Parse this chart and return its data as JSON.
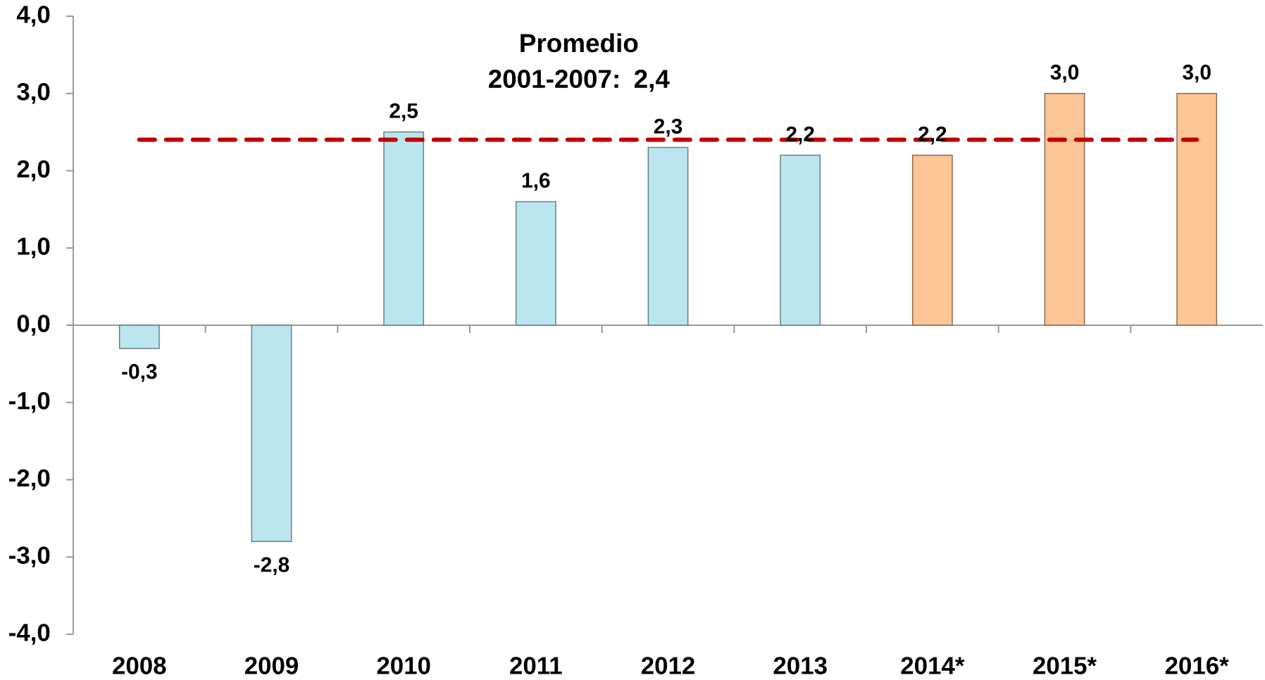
{
  "chart_data": {
    "type": "bar",
    "categories": [
      "2008",
      "2009",
      "2010",
      "2011",
      "2012",
      "2013",
      "2014*",
      "2015*",
      "2016*"
    ],
    "values": [
      -0.3,
      -2.8,
      2.5,
      1.6,
      2.3,
      2.2,
      2.2,
      3.0,
      3.0
    ],
    "colors": [
      "#bce6ef",
      "#bce6ef",
      "#bce6ef",
      "#bce6ef",
      "#bce6ef",
      "#bce6ef",
      "#fcc595",
      "#fcc595",
      "#fcc595"
    ],
    "value_labels": [
      "-0,3",
      "-2,8",
      "2,5",
      "1,6",
      "2,3",
      "2,2",
      "2,2",
      "3,0",
      "3,0"
    ],
    "ylim": [
      -4,
      4
    ],
    "yticks": [
      {
        "value": -4,
        "label": "-4,0"
      },
      {
        "value": -3,
        "label": "-3,0"
      },
      {
        "value": -2,
        "label": "-2,0"
      },
      {
        "value": -1,
        "label": "-1,0"
      },
      {
        "value": 0,
        "label": "0,0"
      },
      {
        "value": 1,
        "label": "1,0"
      },
      {
        "value": 2,
        "label": "2,0"
      },
      {
        "value": 3,
        "label": "3,0"
      },
      {
        "value": 4,
        "label": "4,0"
      }
    ],
    "ref_lines": [
      {
        "axis": "y",
        "value": 2.4,
        "label": "Promedio 2001-2007: 2,4",
        "color": "#c00000",
        "line_style": "dashed"
      }
    ]
  }
}
